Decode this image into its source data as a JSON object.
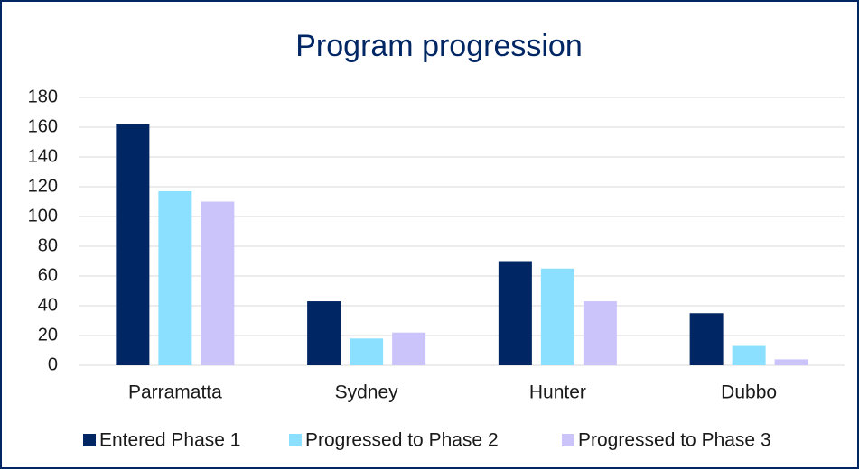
{
  "chart_data": {
    "type": "bar",
    "title": "Program progression",
    "categories": [
      "Parramatta",
      "Sydney",
      "Hunter",
      "Dubbo"
    ],
    "series": [
      {
        "name": "Entered Phase 1",
        "color": "#002664",
        "values": [
          162,
          43,
          70,
          35
        ]
      },
      {
        "name": "Progressed to Phase 2",
        "color": "#8ce0ff",
        "values": [
          117,
          18,
          65,
          13
        ]
      },
      {
        "name": "Progressed to Phase 3",
        "color": "#cbc4fb",
        "values": [
          110,
          22,
          43,
          4
        ]
      }
    ],
    "ylim": [
      0,
      180
    ],
    "yticks": [
      0,
      20,
      40,
      60,
      80,
      100,
      120,
      140,
      160,
      180
    ],
    "grid": true,
    "legend": "bottom"
  }
}
